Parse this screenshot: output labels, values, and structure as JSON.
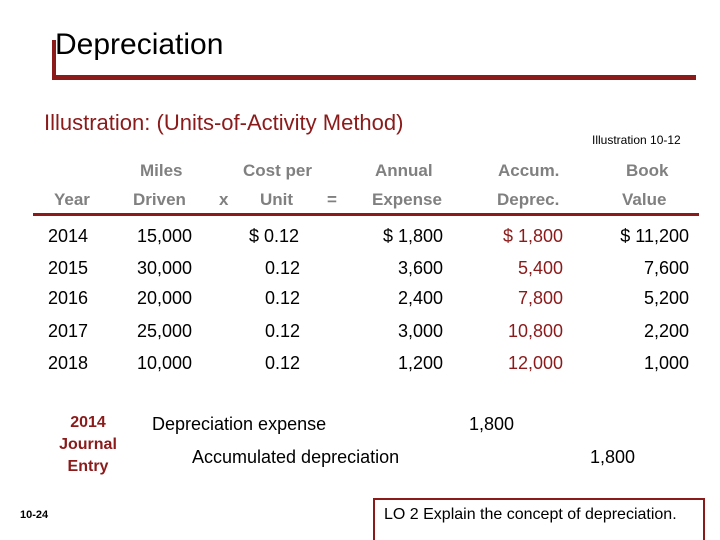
{
  "title": "Depreciation",
  "subtitle_prefix": "Illustration:",
  "subtitle_method": "(Units-of-Activity Method)",
  "illustration_ref": "Illustration 10-12",
  "headers": {
    "year": "Year",
    "miles_top": "Miles",
    "miles_bottom": "Driven",
    "times": "x",
    "cost_top": "Cost per",
    "cost_bottom": "Unit",
    "equals": "=",
    "annual_top": "Annual",
    "annual_bottom": "Expense",
    "accum_top": "Accum.",
    "accum_bottom": "Deprec.",
    "book_top": "Book",
    "book_bottom": "Value"
  },
  "rows": [
    {
      "year": "2014",
      "miles": "15,000",
      "cost": "$ 0.12",
      "expense": "$ 1,800",
      "accum": "$ 1,800",
      "book": "$ 11,200"
    },
    {
      "year": "2015",
      "miles": "30,000",
      "cost": "0.12",
      "expense": "3,600",
      "accum": "5,400",
      "book": "7,600"
    },
    {
      "year": "2016",
      "miles": "20,000",
      "cost": "0.12",
      "expense": "2,400",
      "accum": "7,800",
      "book": "5,200"
    },
    {
      "year": "2017",
      "miles": "25,000",
      "cost": "0.12",
      "expense": "3,000",
      "accum": "10,800",
      "book": "2,200"
    },
    {
      "year": "2018",
      "miles": "10,000",
      "cost": "0.12",
      "expense": "1,200",
      "accum": "12,000",
      "book": "1,000"
    }
  ],
  "journal": {
    "label_line1": "2014",
    "label_line2": "Journal",
    "label_line3": "Entry",
    "debit_account": "Depreciation expense",
    "debit_amount": "1,800",
    "credit_account": "Accumulated depreciation",
    "credit_amount": "1,800"
  },
  "page_number": "10-24",
  "footer": "LO 2  Explain the concept of depreciation."
}
